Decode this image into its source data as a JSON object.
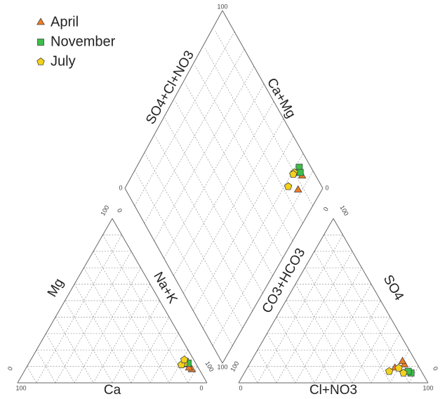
{
  "chart_data": {
    "type": "piper",
    "ticks": [
      0,
      100
    ],
    "grid_step": 10,
    "axis_labels": {
      "ca": "Ca",
      "mg": "Mg",
      "nak": "Na+K",
      "cl": "Cl+NO3",
      "so4": "SO4",
      "hco3": "CO3+HCO3",
      "so4cl": "SO4+Cl+NO3",
      "camg": "Ca+Mg"
    },
    "series": [
      {
        "name": "April",
        "color": "#f07c22",
        "label_color": "#a0410d",
        "marker": "triangle",
        "ca": [
          4,
          6,
          5
        ],
        "mg": [
          8,
          11,
          9
        ],
        "cl": [
          78,
          82,
          80
        ],
        "so4": [
          9,
          11,
          13
        ]
      },
      {
        "name": "November",
        "color": "#3cbf4a",
        "label_color": "#1f6b26",
        "marker": "square",
        "ca": [
          5,
          4
        ],
        "mg": [
          13,
          12
        ],
        "cl": [
          88,
          86
        ],
        "so4": [
          6,
          7
        ]
      },
      {
        "name": "July",
        "color": "#f2d21b",
        "label_color": "#9a8a14",
        "marker": "pentagon",
        "ca": [
          6,
          8,
          5
        ],
        "mg": [
          12,
          11,
          14
        ],
        "cl": [
          76,
          84,
          80
        ],
        "so4": [
          7,
          6,
          9
        ]
      }
    ]
  }
}
